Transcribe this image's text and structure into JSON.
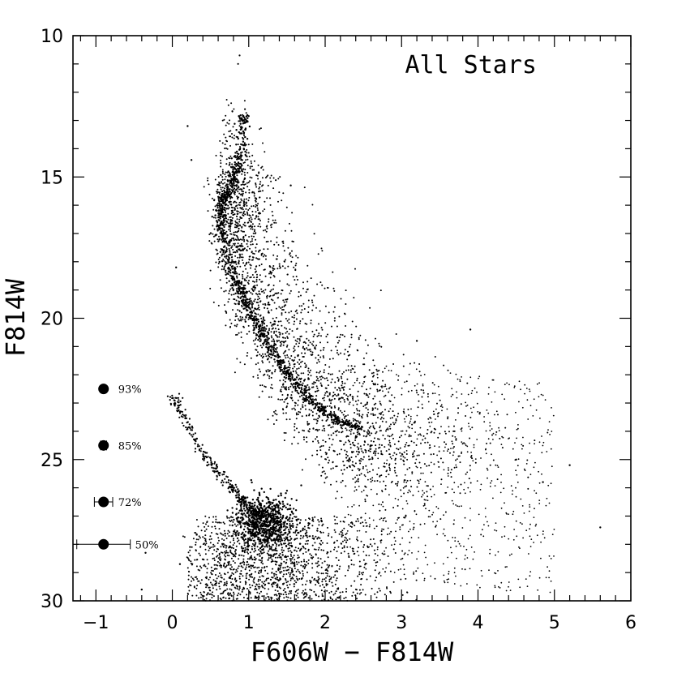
{
  "chart_data": {
    "type": "scatter",
    "title": "All Stars",
    "xlabel": "F606W − F814W",
    "ylabel": "F814W",
    "xlim": [
      -1.3,
      6.0
    ],
    "ylim": [
      30,
      10
    ],
    "y_inverted": true,
    "grid": false,
    "xticks": [
      -1,
      0,
      1,
      2,
      3,
      4,
      5,
      6
    ],
    "yticks": [
      10,
      15,
      20,
      25,
      30
    ],
    "x_tick_labels": [
      "−1",
      "0",
      "1",
      "2",
      "3",
      "4",
      "5",
      "6"
    ],
    "y_tick_labels": [
      "10",
      "15",
      "20",
      "25",
      "30"
    ],
    "marker_color": "#000000",
    "completeness": [
      {
        "x": -0.9,
        "y": 22.5,
        "xerr": 0.02,
        "label": "93%"
      },
      {
        "x": -0.9,
        "y": 24.5,
        "xerr": 0.04,
        "label": "85%"
      },
      {
        "x": -0.9,
        "y": 26.5,
        "xerr": 0.12,
        "label": "72%"
      },
      {
        "x": -0.9,
        "y": 28.0,
        "xerr": 0.35,
        "label": "50%"
      }
    ],
    "sequences": {
      "main_sequence_ridge": {
        "x": [
          0.93,
          0.92,
          0.88,
          0.82,
          0.74,
          0.67,
          0.64,
          0.66,
          0.72,
          0.8,
          0.9,
          1.0,
          1.12,
          1.25,
          1.38,
          1.52,
          1.68,
          1.85,
          2.05,
          2.25,
          2.45
        ],
        "y": [
          12.8,
          13.5,
          14.3,
          15.0,
          15.5,
          15.8,
          16.3,
          17.0,
          17.8,
          18.5,
          19.1,
          19.7,
          20.3,
          20.9,
          21.5,
          22.0,
          22.5,
          23.0,
          23.4,
          23.7,
          23.9
        ],
        "width": 0.04,
        "count": 900
      },
      "upper_branch": {
        "x": [
          0.6,
          0.7,
          0.8,
          0.9,
          1.0
        ],
        "y": [
          12.2,
          12.9,
          13.4,
          14.1,
          10.7
        ],
        "count": 40
      },
      "ms_scatter": {
        "x_range": [
          0.7,
          4.2
        ],
        "y_range": [
          16.0,
          28.5
        ],
        "count": 2600
      },
      "white_dwarf_sequence": {
        "x": [
          0.0,
          0.15,
          0.35,
          0.55,
          0.75,
          0.9,
          1.05,
          1.15
        ],
        "y": [
          22.7,
          23.5,
          24.5,
          25.3,
          25.9,
          26.4,
          26.8,
          27.0
        ],
        "width": 0.04,
        "count": 300
      },
      "wd_clump": {
        "x": 1.2,
        "y": 27.2,
        "sx": 0.18,
        "sy": 0.45,
        "count": 700
      },
      "faint_field": {
        "x_range": [
          0.1,
          3.3
        ],
        "y_range": [
          27.0,
          30.0
        ],
        "count": 1100
      },
      "outliers": {
        "x": [
          0.2,
          0.25,
          0.05,
          1.55,
          3.2,
          3.9,
          4.5,
          4.85,
          5.2,
          5.6,
          0.1,
          -0.4,
          -0.35
        ],
        "y": [
          13.2,
          14.4,
          18.2,
          15.3,
          20.8,
          20.4,
          25.0,
          25.8,
          25.2,
          27.4,
          28.7,
          29.6,
          28.3
        ]
      }
    }
  }
}
